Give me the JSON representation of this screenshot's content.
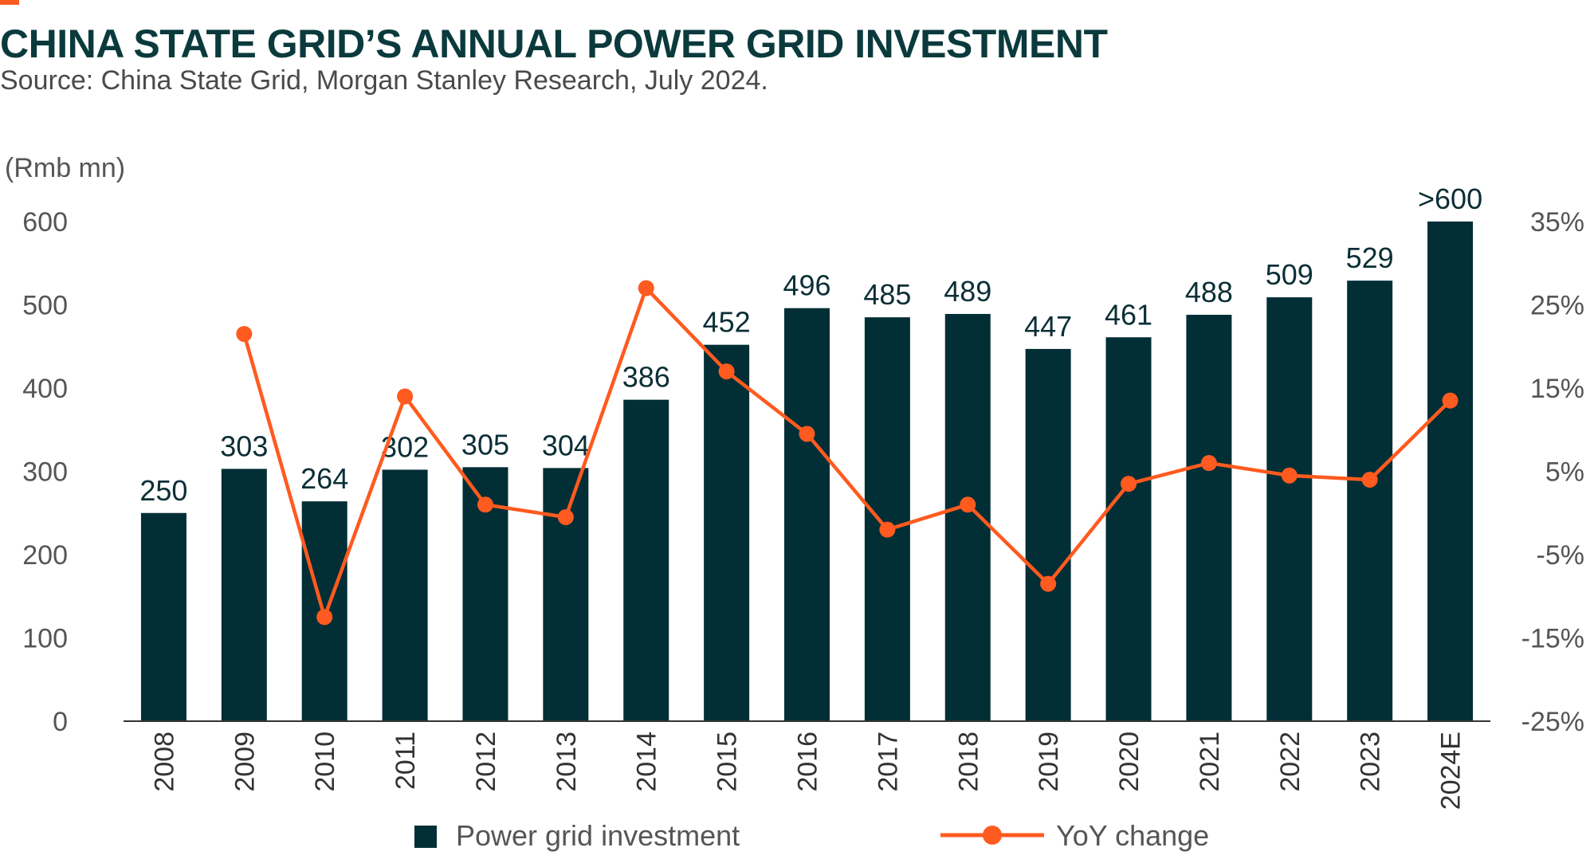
{
  "header": {
    "title": "CHINA STATE GRID’S ANNUAL POWER GRID INVESTMENT",
    "subtitle": "Source: China State Grid, Morgan Stanley Research, July 2024."
  },
  "colors": {
    "bar": "#022e36",
    "line": "#ff5a1f",
    "accent": "#ff5a1f"
  },
  "chart_data": {
    "type": "bar",
    "title": "CHINA STATE GRID’S ANNUAL POWER GRID INVESTMENT",
    "subtitle": "Source: China State Grid, Morgan Stanley Research, July 2024.",
    "categories": [
      "2008",
      "2009",
      "2010",
      "2011",
      "2012",
      "2013",
      "2014",
      "2015",
      "2016",
      "2017",
      "2018",
      "2019",
      "2020",
      "2021",
      "2022",
      "2023",
      "2024E"
    ],
    "ylabel": "(Rmb mn)",
    "ylim": [
      0,
      600
    ],
    "yticks": [
      "0",
      "100",
      "200",
      "300",
      "400",
      "500",
      "600"
    ],
    "y2lim": [
      -25,
      35
    ],
    "y2ticks": [
      "-25%",
      "-15%",
      "-5%",
      "5%",
      "15%",
      "25%",
      "35%"
    ],
    "grid": false,
    "legend_position": "bottom",
    "series": [
      {
        "name": "Power grid investment",
        "type": "bar",
        "axis": "left",
        "values": [
          250,
          303,
          264,
          302,
          305,
          304,
          386,
          452,
          496,
          485,
          489,
          447,
          461,
          488,
          509,
          529,
          600
        ],
        "labels": [
          "250",
          "303",
          "264",
          "302",
          "305",
          "304",
          "386",
          "452",
          "496",
          "485",
          "489",
          "447",
          "461",
          "488",
          "509",
          "529",
          ">600"
        ]
      },
      {
        "name": "YoY change",
        "type": "line",
        "axis": "right",
        "unit": "%",
        "values": [
          null,
          21.5,
          -12.5,
          14.0,
          1.0,
          -0.5,
          27.0,
          17.0,
          9.5,
          -2.0,
          1.0,
          -8.5,
          3.5,
          6.0,
          4.5,
          4.0,
          13.5
        ]
      }
    ]
  }
}
